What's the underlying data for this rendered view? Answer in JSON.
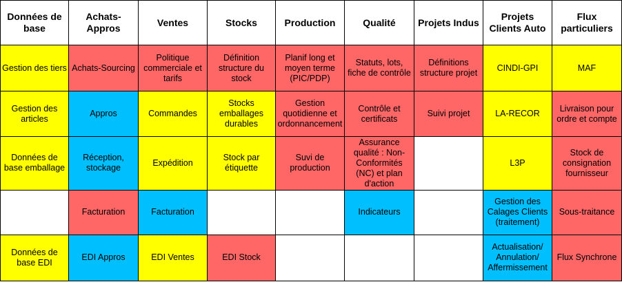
{
  "headers": [
    "Données de base",
    "Achats-Appros",
    "Ventes",
    "Stocks",
    "Production",
    "Qualité",
    "Projets Indus",
    "Projets Clients Auto",
    "Flux particuliers"
  ],
  "legend_colors": {
    "yellow": "#ffff00",
    "red": "#ff6666",
    "blue": "#00bfff",
    "white": "#ffffff"
  },
  "rows": [
    {
      "cells": [
        {
          "text": "Gestion des tiers",
          "color": "yellow"
        },
        {
          "text": "Achats-Sourcing",
          "color": "red"
        },
        {
          "text": "Politique commerciale et tarifs",
          "color": "red"
        },
        {
          "text": "Définition structure du stock",
          "color": "red"
        },
        {
          "text": "Planif long et moyen terme (PIC/PDP)",
          "color": "red"
        },
        {
          "text": "Statuts, lots, fiche de contrôle",
          "color": "red"
        },
        {
          "text": "Définitions structure projet",
          "color": "red"
        },
        {
          "text": "CINDI-GPI",
          "color": "yellow"
        },
        {
          "text": "MAF",
          "color": "yellow"
        }
      ]
    },
    {
      "cells": [
        {
          "text": "Gestion des articles",
          "color": "yellow"
        },
        {
          "text": "Appros",
          "color": "blue"
        },
        {
          "text": "Commandes",
          "color": "yellow"
        },
        {
          "text": "Stocks emballages durables",
          "color": "yellow"
        },
        {
          "text": "Gestion quotidienne et ordonnancement",
          "color": "red"
        },
        {
          "text": "Contrôle et certificats",
          "color": "red"
        },
        {
          "text": "Suivi projet",
          "color": "red"
        },
        {
          "text": "LA-RECOR",
          "color": "yellow"
        },
        {
          "text": "Livraison pour ordre et compte",
          "color": "red"
        }
      ]
    },
    {
      "cells": [
        {
          "text": "Données de base emballage",
          "color": "yellow"
        },
        {
          "text": "Réception, stockage",
          "color": "blue"
        },
        {
          "text": "Expédition",
          "color": "yellow"
        },
        {
          "text": "Stock par étiquette",
          "color": "yellow"
        },
        {
          "text": "Suvi de production",
          "color": "red"
        },
        {
          "text": "Assurance qualité : Non-Conformités (NC) et plan d'action",
          "color": "red"
        },
        {
          "text": "",
          "color": "white"
        },
        {
          "text": "L3P",
          "color": "yellow"
        },
        {
          "text": "Stock de consignation fournisseur",
          "color": "red"
        }
      ]
    },
    {
      "cells": [
        {
          "text": "",
          "color": "white"
        },
        {
          "text": "Facturation",
          "color": "red"
        },
        {
          "text": "Facturation",
          "color": "blue"
        },
        {
          "text": "",
          "color": "white"
        },
        {
          "text": "",
          "color": "white"
        },
        {
          "text": "Indicateurs",
          "color": "blue"
        },
        {
          "text": "",
          "color": "white"
        },
        {
          "text": "Gestion des Calages Clients (traitement)",
          "color": "blue"
        },
        {
          "text": "Sous-traitance",
          "color": "red"
        }
      ]
    },
    {
      "cells": [
        {
          "text": "Données de base EDI",
          "color": "yellow"
        },
        {
          "text": "EDI Appros",
          "color": "blue"
        },
        {
          "text": "EDI Ventes",
          "color": "yellow"
        },
        {
          "text": "EDI Stock",
          "color": "red"
        },
        {
          "text": "",
          "color": "white"
        },
        {
          "text": "",
          "color": "white"
        },
        {
          "text": "",
          "color": "white"
        },
        {
          "text": "Actualisation/ Annulation/ Affermissement",
          "color": "blue"
        },
        {
          "text": "Flux Synchrone",
          "color": "red"
        }
      ]
    }
  ]
}
